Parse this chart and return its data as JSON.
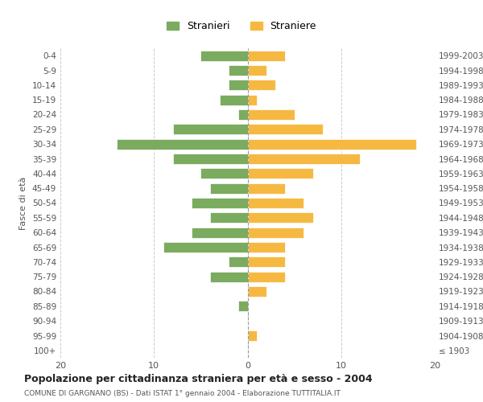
{
  "age_groups": [
    "100+",
    "95-99",
    "90-94",
    "85-89",
    "80-84",
    "75-79",
    "70-74",
    "65-69",
    "60-64",
    "55-59",
    "50-54",
    "45-49",
    "40-44",
    "35-39",
    "30-34",
    "25-29",
    "20-24",
    "15-19",
    "10-14",
    "5-9",
    "0-4"
  ],
  "birth_years": [
    "≤ 1903",
    "1904-1908",
    "1909-1913",
    "1914-1918",
    "1919-1923",
    "1924-1928",
    "1929-1933",
    "1934-1938",
    "1939-1943",
    "1944-1948",
    "1949-1953",
    "1954-1958",
    "1959-1963",
    "1964-1968",
    "1969-1973",
    "1974-1978",
    "1979-1983",
    "1984-1988",
    "1989-1993",
    "1994-1998",
    "1999-2003"
  ],
  "males": [
    0,
    0,
    0,
    1,
    0,
    4,
    2,
    9,
    6,
    4,
    6,
    4,
    5,
    8,
    14,
    8,
    1,
    3,
    2,
    2,
    5
  ],
  "females": [
    0,
    1,
    0,
    0,
    2,
    4,
    4,
    4,
    6,
    7,
    6,
    4,
    7,
    12,
    18,
    8,
    5,
    1,
    3,
    2,
    4
  ],
  "color_male": "#7aab5e",
  "color_female": "#f5b942",
  "title": "Popolazione per cittadinanza straniera per età e sesso - 2004",
  "subtitle": "COMUNE DI GARGNANO (BS) - Dati ISTAT 1° gennaio 2004 - Elaborazione TUTTITALIA.IT",
  "ylabel_left": "Fasce di età",
  "legend_stranieri": "Stranieri",
  "legend_straniere": "Straniere",
  "xlim": 20,
  "background_color": "#ffffff",
  "grid_color": "#cccccc"
}
